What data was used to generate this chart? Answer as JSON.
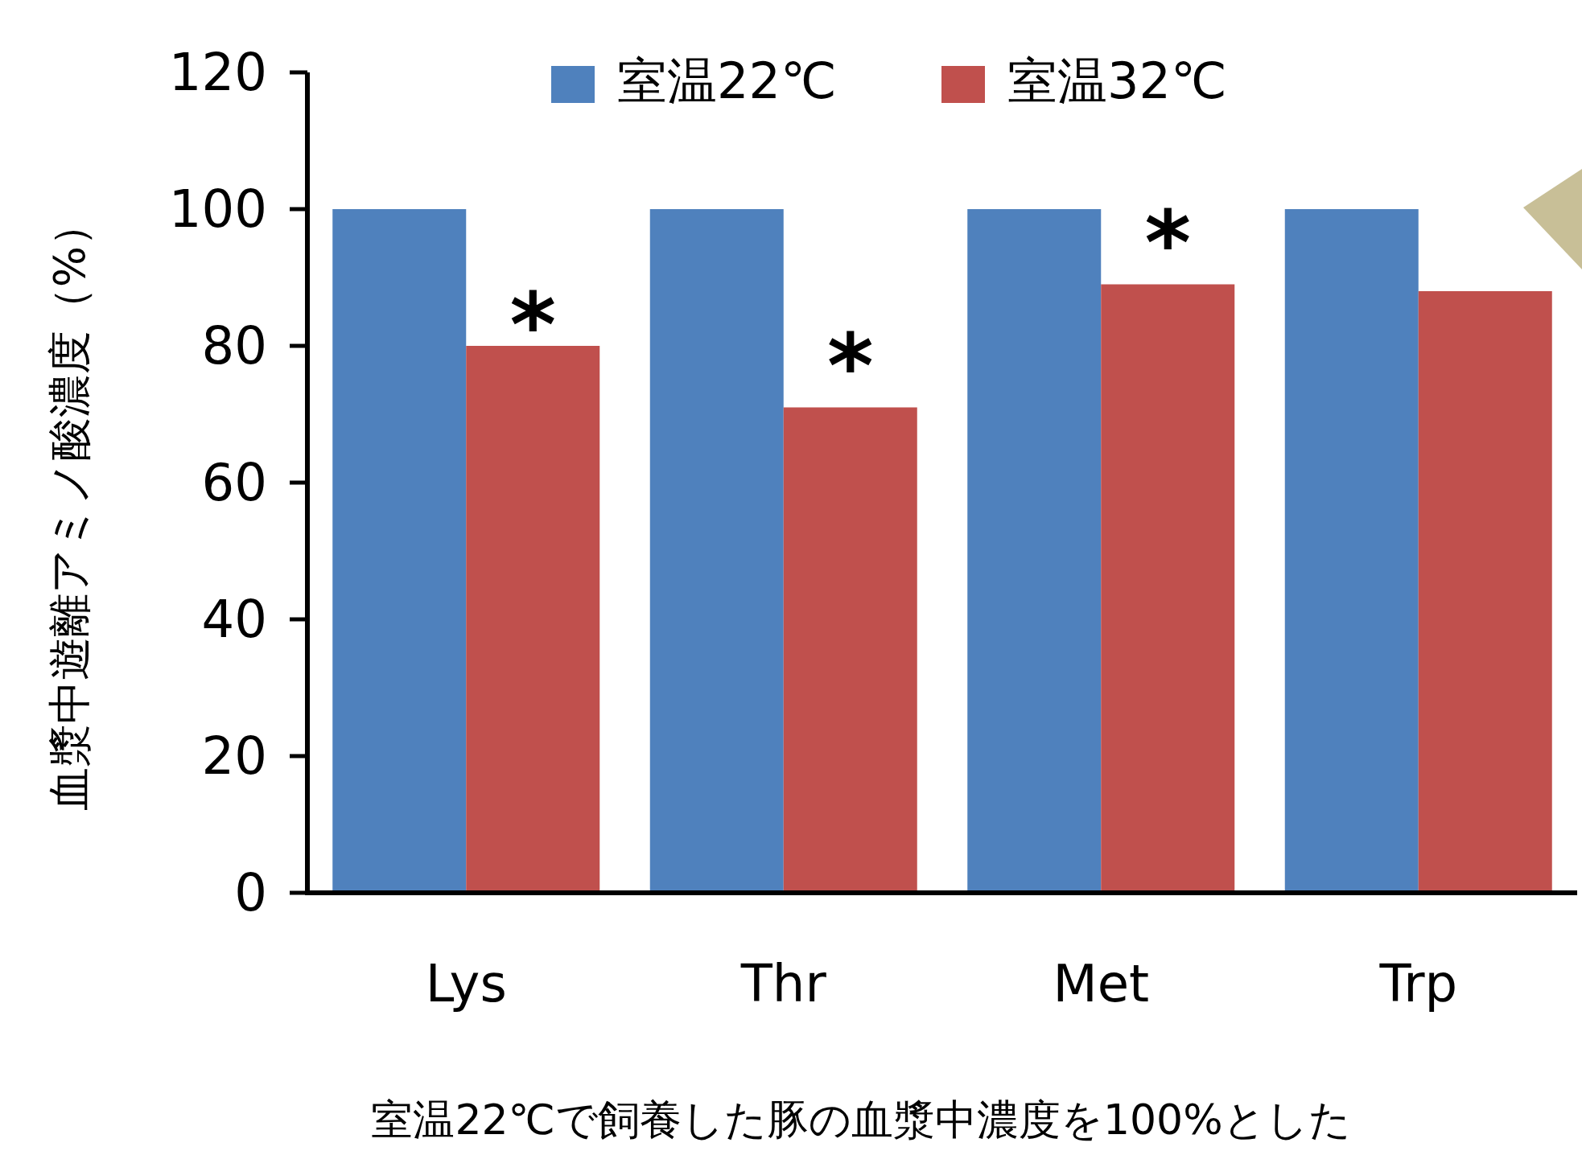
{
  "chart_data": {
    "type": "bar",
    "ylabel": "血漿中遊離アミノ酸濃度（%）",
    "categories": [
      "Lys",
      "Thr",
      "Met",
      "Trp"
    ],
    "series": [
      {
        "name": "室温22℃",
        "color": "#4f81bd",
        "values": [
          100,
          100,
          100,
          100
        ]
      },
      {
        "name": "室温32℃",
        "color": "#c0504d",
        "values": [
          80,
          71,
          89,
          88
        ]
      }
    ],
    "ylim": [
      0,
      120
    ],
    "yticks": [
      0,
      20,
      40,
      60,
      80,
      100,
      120
    ],
    "legend": "top",
    "annotations": [
      {
        "text": "*",
        "x": "Lys",
        "y": 85
      },
      {
        "text": "*",
        "x": "Thr",
        "y": 79
      },
      {
        "text": "*",
        "x": "Met",
        "y": 97
      },
      "室温22℃で飼養した豚の血漿中濃度を100%とした"
    ]
  }
}
